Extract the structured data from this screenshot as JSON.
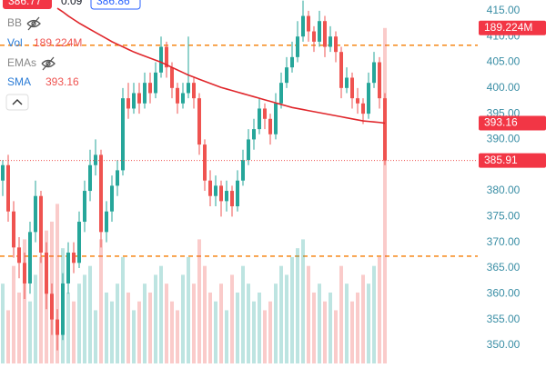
{
  "chart_data": {
    "type": "candlestick",
    "quote": [
      "386.77",
      "0.09",
      "386.86"
    ],
    "indicators": [
      "BB",
      "Vol",
      "EMAs",
      "SMA"
    ],
    "ohlc": [
      [
        382,
        386,
        379,
        385
      ],
      [
        385,
        387,
        374,
        376
      ],
      [
        376,
        378,
        367,
        369
      ],
      [
        369,
        371,
        363,
        366
      ],
      [
        366,
        368,
        359,
        362
      ],
      [
        362,
        374,
        360,
        372
      ],
      [
        372,
        382,
        370,
        379
      ],
      [
        379,
        380,
        366,
        368
      ],
      [
        368,
        370,
        357,
        360
      ],
      [
        360,
        362,
        352,
        355
      ],
      [
        355,
        357,
        349,
        352
      ],
      [
        352,
        364,
        351,
        362
      ],
      [
        362,
        370,
        360,
        368
      ],
      [
        368,
        370,
        364,
        366
      ],
      [
        366,
        376,
        365,
        374
      ],
      [
        374,
        382,
        372,
        380
      ],
      [
        380,
        388,
        378,
        385
      ],
      [
        385,
        390,
        383,
        387
      ],
      [
        387,
        388,
        369,
        372
      ],
      [
        372,
        378,
        370,
        376
      ],
      [
        376,
        383,
        374,
        381
      ],
      [
        381,
        386,
        379,
        384
      ],
      [
        384,
        400,
        383,
        398
      ],
      [
        398,
        401,
        394,
        396
      ],
      [
        396,
        401,
        395,
        399
      ],
      [
        399,
        401,
        395,
        397
      ],
      [
        397,
        403,
        396,
        401
      ],
      [
        401,
        403,
        397,
        399
      ],
      [
        399,
        405,
        398,
        403
      ],
      [
        403,
        410,
        402,
        408
      ],
      [
        408,
        409,
        402,
        404
      ],
      [
        404,
        405,
        398,
        400
      ],
      [
        400,
        401,
        395,
        397
      ],
      [
        397,
        401,
        396,
        399
      ],
      [
        399,
        410,
        398,
        401
      ],
      [
        401,
        402,
        396,
        398
      ],
      [
        398,
        399,
        387,
        389
      ],
      [
        389,
        390,
        380,
        382
      ],
      [
        382,
        384,
        377,
        379
      ],
      [
        379,
        383,
        377,
        381
      ],
      [
        381,
        382,
        375,
        378
      ],
      [
        378,
        382,
        376,
        380
      ],
      [
        380,
        381,
        375,
        377
      ],
      [
        377,
        384,
        376,
        382
      ],
      [
        382,
        388,
        381,
        386
      ],
      [
        386,
        392,
        385,
        390
      ],
      [
        390,
        394,
        388,
        392
      ],
      [
        392,
        398,
        391,
        396
      ],
      [
        396,
        397,
        392,
        394
      ],
      [
        394,
        395,
        389,
        391
      ],
      [
        391,
        399,
        390,
        397
      ],
      [
        397,
        403,
        396,
        401
      ],
      [
        401,
        406,
        400,
        404
      ],
      [
        404,
        409,
        403,
        406
      ],
      [
        406,
        413,
        405,
        410
      ],
      [
        410,
        417,
        409,
        414
      ],
      [
        414,
        415,
        409,
        411
      ],
      [
        411,
        412,
        407,
        409
      ],
      [
        409,
        415,
        408,
        413
      ],
      [
        413,
        414,
        406,
        408
      ],
      [
        408,
        412,
        407,
        410
      ],
      [
        410,
        411,
        405,
        407
      ],
      [
        407,
        408,
        398,
        400
      ],
      [
        400,
        404,
        399,
        402
      ],
      [
        402,
        403,
        396,
        398
      ],
      [
        398,
        400,
        395,
        397
      ],
      [
        397,
        398,
        393,
        395
      ],
      [
        395,
        403,
        394,
        401
      ],
      [
        401,
        407,
        400,
        405
      ],
      [
        405,
        406,
        396,
        398
      ],
      [
        398,
        399,
        385,
        385.91
      ]
    ],
    "volume": {
      "name": "Vol",
      "values": [
        45000000,
        30000000,
        55000000,
        40000000,
        70000000,
        35000000,
        50000000,
        60000000,
        75000000,
        80000000,
        90000000,
        65000000,
        40000000,
        35000000,
        45000000,
        50000000,
        55000000,
        30000000,
        70000000,
        40000000,
        35000000,
        45000000,
        60000000,
        40000000,
        30000000,
        35000000,
        45000000,
        40000000,
        50000000,
        55000000,
        45000000,
        35000000,
        30000000,
        50000000,
        60000000,
        45000000,
        70000000,
        55000000,
        40000000,
        35000000,
        45000000,
        30000000,
        50000000,
        40000000,
        55000000,
        45000000,
        35000000,
        40000000,
        30000000,
        35000000,
        45000000,
        55000000,
        50000000,
        60000000,
        65000000,
        70000000,
        55000000,
        40000000,
        45000000,
        35000000,
        40000000,
        30000000,
        55000000,
        45000000,
        35000000,
        40000000,
        50000000,
        45000000,
        55000000,
        60000000,
        189224000
      ],
      "value_labels": {
        "70": "189.224M"
      },
      "lim": [
        0,
        205000000
      ]
    },
    "sma": {
      "name": "SMA",
      "color": "#e0262b",
      "values": [
        null,
        null,
        null,
        null,
        null,
        null,
        null,
        null,
        null,
        null,
        415.5,
        414.8,
        414,
        413.3,
        412.6,
        412,
        411.4,
        410.8,
        410.2,
        409.6,
        409,
        408.5,
        408,
        407.5,
        407,
        406.6,
        406.2,
        405.8,
        405.4,
        405,
        404.5,
        404,
        403.5,
        403,
        402.5,
        402.1,
        401.7,
        401.3,
        400.9,
        400.5,
        400.1,
        399.8,
        399.5,
        399.2,
        398.9,
        398.6,
        398.3,
        398,
        397.7,
        397.4,
        397.1,
        396.8,
        396.5,
        396.2,
        396,
        395.8,
        395.6,
        395.4,
        395.2,
        395,
        394.8,
        394.6,
        394.4,
        394.2,
        394,
        393.8,
        393.6,
        393.5,
        393.4,
        393.3,
        393.16
      ]
    },
    "levels": [
      {
        "value": 408.3,
        "color": "#f57c00"
      },
      {
        "value": 367.3,
        "color": "#f57c00"
      }
    ],
    "up_color": "#26a69a",
    "down_color": "#ef5350",
    "ylim": [
      346.45,
      417.1
    ],
    "yticks": [
      {
        "value": 415,
        "label": "415.00"
      },
      {
        "value": 410,
        "label": "410.00"
      },
      {
        "value": 405,
        "label": "405.00"
      },
      {
        "value": 400,
        "label": "400.00"
      },
      {
        "value": 395,
        "label": "395.00"
      },
      {
        "value": 390,
        "label": "390.00"
      },
      {
        "value": 380,
        "label": "380.00"
      },
      {
        "value": 375,
        "label": "375.00"
      },
      {
        "value": 370,
        "label": "370.00"
      },
      {
        "value": 365,
        "label": "365.00"
      },
      {
        "value": 360,
        "label": "360.00"
      },
      {
        "value": 355,
        "label": "355.00"
      },
      {
        "value": 350,
        "label": "350.00"
      }
    ]
  }
}
